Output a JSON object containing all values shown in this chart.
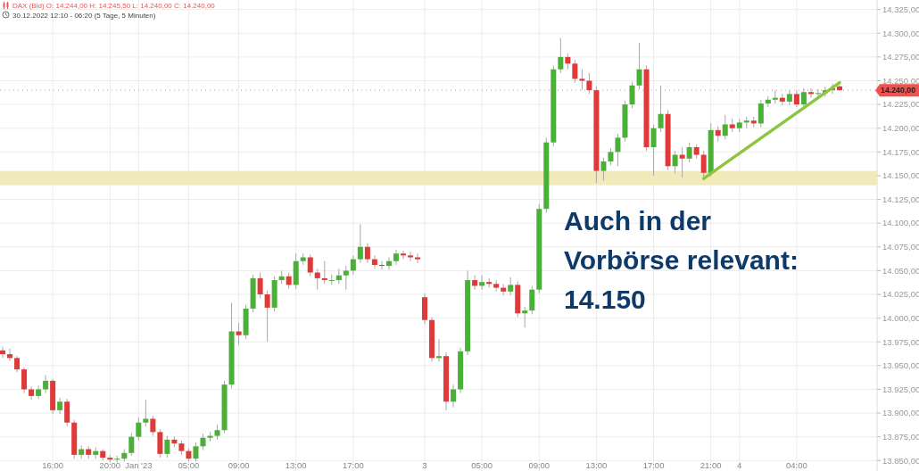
{
  "chart_data": {
    "type": "candlestick",
    "title": "DAX (Bid) O: 14.244,00 H: 14.245,50 L: 14.240,00 C: 14.240,00",
    "subtitle": "30.12.2022 12:10 - 06:20 (5 Tage, 5 Minuten)",
    "categories": [
      null,
      null,
      null,
      null,
      null,
      null,
      null,
      "16:00",
      null,
      null,
      null,
      null,
      null,
      null,
      null,
      "20:00",
      null,
      null,
      null,
      "Jan '23",
      null,
      null,
      null,
      null,
      null,
      null,
      "05:00",
      null,
      null,
      null,
      null,
      null,
      null,
      "09:00",
      null,
      null,
      null,
      null,
      null,
      null,
      null,
      "13:00",
      null,
      null,
      null,
      null,
      null,
      null,
      null,
      "17:00",
      null,
      null,
      null,
      null,
      null,
      null,
      null,
      null,
      null,
      "3",
      null,
      null,
      null,
      null,
      null,
      null,
      null,
      "05:00",
      null,
      null,
      null,
      null,
      null,
      null,
      null,
      "09:00",
      null,
      null,
      null,
      null,
      null,
      null,
      null,
      "13:00",
      null,
      null,
      null,
      null,
      null,
      null,
      null,
      "17:00",
      null,
      null,
      null,
      null,
      null,
      null,
      null,
      "21:00",
      null,
      null,
      null,
      "4",
      null,
      null,
      null,
      null,
      null,
      null,
      null,
      "04:00",
      null,
      null,
      null,
      null,
      null,
      null
    ],
    "ohlc": [
      [
        13966,
        13970,
        13958,
        13962
      ],
      [
        13962,
        13968,
        13955,
        13958
      ],
      [
        13958,
        13960,
        13943,
        13946
      ],
      [
        13946,
        13948,
        13921,
        13925
      ],
      [
        13925,
        13928,
        13914,
        13918
      ],
      [
        13918,
        13929,
        13915,
        13925
      ],
      [
        13925,
        13940,
        13921,
        13934
      ],
      [
        13934,
        13936,
        13899,
        13903
      ],
      [
        13903,
        13916,
        13899,
        13912
      ],
      [
        13912,
        13915,
        13886,
        13890
      ],
      [
        13890,
        13893,
        13852,
        13856
      ],
      [
        13856,
        13866,
        13852,
        13862
      ],
      [
        13862,
        13865,
        13852,
        13856
      ],
      [
        13856,
        13864,
        13852,
        13860
      ],
      [
        13860,
        13862,
        13850,
        13853
      ],
      [
        13853,
        13856,
        13848,
        13851
      ],
      [
        13851,
        13855,
        13848,
        13852
      ],
      [
        13852,
        13862,
        13849,
        13858
      ],
      [
        13858,
        13879,
        13855,
        13875
      ],
      [
        13875,
        13895,
        13871,
        13890
      ],
      [
        13890,
        13914,
        13886,
        13894
      ],
      [
        13894,
        13897,
        13876,
        13880
      ],
      [
        13880,
        13883,
        13853,
        13857
      ],
      [
        13857,
        13876,
        13853,
        13872
      ],
      [
        13872,
        13875,
        13864,
        13868
      ],
      [
        13868,
        13871,
        13856,
        13860
      ],
      [
        13860,
        13863,
        13849,
        13852
      ],
      [
        13852,
        13869,
        13849,
        13865
      ],
      [
        13865,
        13878,
        13861,
        13874
      ],
      [
        13874,
        13880,
        13870,
        13876
      ],
      [
        13876,
        13888,
        13872,
        13882
      ],
      [
        13882,
        13934,
        13879,
        13930
      ],
      [
        13930,
        14016,
        13926,
        13986
      ],
      [
        13986,
        13995,
        13972,
        13982
      ],
      [
        13982,
        14014,
        13978,
        14010
      ],
      [
        14010,
        14046,
        14006,
        14042
      ],
      [
        14042,
        14048,
        14021,
        14025
      ],
      [
        14025,
        14029,
        13975,
        14011
      ],
      [
        14011,
        14044,
        14007,
        14040
      ],
      [
        14040,
        14050,
        14036,
        14044
      ],
      [
        14044,
        14048,
        14031,
        14035
      ],
      [
        14035,
        14068,
        14031,
        14060
      ],
      [
        14060,
        14068,
        14056,
        14064
      ],
      [
        14064,
        14067,
        14044,
        14048
      ],
      [
        14048,
        14052,
        14030,
        14042
      ],
      [
        14042,
        14060,
        14036,
        14040
      ],
      [
        14040,
        14046,
        14035,
        14040
      ],
      [
        14040,
        14052,
        14036,
        14045
      ],
      [
        14045,
        14055,
        14030,
        14050
      ],
      [
        14050,
        14066,
        14046,
        14062
      ],
      [
        14062,
        14099,
        14058,
        14075
      ],
      [
        14075,
        14079,
        14058,
        14062
      ],
      [
        14062,
        14066,
        14052,
        14056
      ],
      [
        14056,
        14060,
        14051,
        14055
      ],
      [
        14055,
        14064,
        14051,
        14060
      ],
      [
        14060,
        14072,
        14056,
        14068
      ],
      [
        14068,
        14071,
        14062,
        14066
      ],
      [
        14066,
        14070,
        14060,
        14064
      ],
      [
        14064,
        14068,
        14058,
        14062
      ],
      [
        14022,
        14026,
        13994,
        13998
      ],
      [
        13998,
        14001,
        13954,
        13958
      ],
      [
        13958,
        13978,
        13954,
        13960
      ],
      [
        13960,
        13964,
        13903,
        13912
      ],
      [
        13912,
        13930,
        13906,
        13925
      ],
      [
        13925,
        13969,
        13921,
        13965
      ],
      [
        13965,
        14050,
        13961,
        14040
      ],
      [
        14040,
        14045,
        14030,
        14034
      ],
      [
        14034,
        14045,
        14030,
        14038
      ],
      [
        14038,
        14042,
        14032,
        14036
      ],
      [
        14036,
        14040,
        14028,
        14032
      ],
      [
        14032,
        14036,
        14024,
        14028
      ],
      [
        14028,
        14043,
        14024,
        14035
      ],
      [
        14035,
        14039,
        14001,
        14005
      ],
      [
        14005,
        14012,
        13990,
        14008
      ],
      [
        14008,
        14034,
        14004,
        14030
      ],
      [
        14030,
        14120,
        14026,
        14115
      ],
      [
        14115,
        14190,
        14111,
        14185
      ],
      [
        14185,
        14266,
        14181,
        14262
      ],
      [
        14262,
        14295,
        14258,
        14275
      ],
      [
        14275,
        14279,
        14262,
        14268
      ],
      [
        14268,
        14272,
        14248,
        14252
      ],
      [
        14252,
        14262,
        14240,
        14250
      ],
      [
        14250,
        14258,
        14236,
        14240
      ],
      [
        14240,
        14244,
        14142,
        14155
      ],
      [
        14155,
        14169,
        14145,
        14165
      ],
      [
        14165,
        14179,
        14161,
        14175
      ],
      [
        14175,
        14194,
        14160,
        14190
      ],
      [
        14190,
        14229,
        14186,
        14225
      ],
      [
        14225,
        14249,
        14221,
        14245
      ],
      [
        14245,
        14290,
        14241,
        14262
      ],
      [
        14262,
        14266,
        14176,
        14180
      ],
      [
        14180,
        14204,
        14150,
        14200
      ],
      [
        14200,
        14245,
        14196,
        14215
      ],
      [
        14215,
        14219,
        14156,
        14160
      ],
      [
        14160,
        14176,
        14152,
        14172
      ],
      [
        14172,
        14180,
        14148,
        14168
      ],
      [
        14168,
        14185,
        14164,
        14180
      ],
      [
        14180,
        14183,
        14168,
        14172
      ],
      [
        14172,
        14176,
        14149,
        14153
      ],
      [
        14153,
        14205,
        14149,
        14198
      ],
      [
        14198,
        14202,
        14186,
        14192
      ],
      [
        14192,
        14214,
        14188,
        14204
      ],
      [
        14204,
        14210,
        14196,
        14200
      ],
      [
        14200,
        14210,
        14196,
        14206
      ],
      [
        14206,
        14212,
        14200,
        14208
      ],
      [
        14208,
        14212,
        14201,
        14205
      ],
      [
        14205,
        14230,
        14201,
        14226
      ],
      [
        14226,
        14234,
        14222,
        14230
      ],
      [
        14230,
        14240,
        14226,
        14232
      ],
      [
        14232,
        14236,
        14224,
        14228
      ],
      [
        14228,
        14240,
        14224,
        14236
      ],
      [
        14236,
        14240,
        14222,
        14225
      ],
      [
        14225,
        14242,
        14221,
        14238
      ],
      [
        14238,
        14242,
        14232,
        14236
      ],
      [
        14236,
        14241,
        14232,
        14237
      ],
      [
        14237,
        14244,
        14233,
        14240
      ],
      [
        14240,
        14247,
        14236,
        14242
      ],
      [
        14244,
        14245.5,
        14240,
        14240
      ]
    ],
    "series": [
      {
        "type": "line",
        "color": "#8cc63f",
        "values": [
          null,
          null,
          null,
          null,
          null,
          null,
          null,
          null,
          null,
          null,
          null,
          null,
          null,
          null,
          null,
          null,
          null,
          null,
          null,
          null,
          null,
          null,
          null,
          null,
          null,
          null,
          null,
          null,
          null,
          null,
          null,
          null,
          null,
          null,
          null,
          null,
          null,
          null,
          null,
          null,
          null,
          null,
          null,
          null,
          null,
          null,
          null,
          null,
          null,
          null,
          null,
          null,
          null,
          null,
          null,
          null,
          null,
          null,
          null,
          null,
          null,
          null,
          null,
          null,
          null,
          null,
          null,
          null,
          null,
          null,
          null,
          null,
          null,
          null,
          null,
          null,
          null,
          null,
          null,
          null,
          null,
          null,
          null,
          null,
          null,
          null,
          null,
          null,
          null,
          null,
          null,
          null,
          null,
          null,
          null,
          null,
          null,
          null,
          14147,
          null,
          null,
          null,
          null,
          null,
          null,
          null,
          null,
          null,
          null,
          null,
          null,
          null,
          null,
          null,
          null,
          null,
          null,
          14248
        ]
      }
    ],
    "ylim": [
      13839,
      14335
    ],
    "yticks": [
      {
        "value": 13850,
        "label": "13.850,00"
      },
      {
        "value": 13875,
        "label": "13.875,00"
      },
      {
        "value": 13900,
        "label": "13.900,00"
      },
      {
        "value": 13925,
        "label": "13.925,00"
      },
      {
        "value": 13950,
        "label": "13.950,00"
      },
      {
        "value": 13975,
        "label": "13.975,00"
      },
      {
        "value": 14000,
        "label": "14.000,00"
      },
      {
        "value": 14025,
        "label": "14.025,00"
      },
      {
        "value": 14050,
        "label": "14.050,00"
      },
      {
        "value": 14075,
        "label": "14.075,00"
      },
      {
        "value": 14100,
        "label": "14.100,00"
      },
      {
        "value": 14125,
        "label": "14.125,00"
      },
      {
        "value": 14150,
        "label": "14.150,00"
      },
      {
        "value": 14175,
        "label": "14.175,00"
      },
      {
        "value": 14200,
        "label": "14.200,00"
      },
      {
        "value": 14225,
        "label": "14.225,00"
      },
      {
        "value": 14250,
        "label": "14.250,00"
      },
      {
        "value": 14275,
        "label": "14.275,00"
      },
      {
        "value": 14300,
        "label": "14.300,00"
      },
      {
        "value": 14325,
        "label": "14.325,00"
      }
    ],
    "grid": true,
    "ref_lines": [
      {
        "axis": "y",
        "value": 14240,
        "label": "14.240,00",
        "color": "#ef5350"
      }
    ],
    "bands": [
      {
        "axis": "y",
        "from": 14140,
        "to": 14155,
        "color": "#efe8b4"
      }
    ],
    "annotations": [
      "Auch in der\nVorbörse relevant:\n14.150"
    ]
  }
}
